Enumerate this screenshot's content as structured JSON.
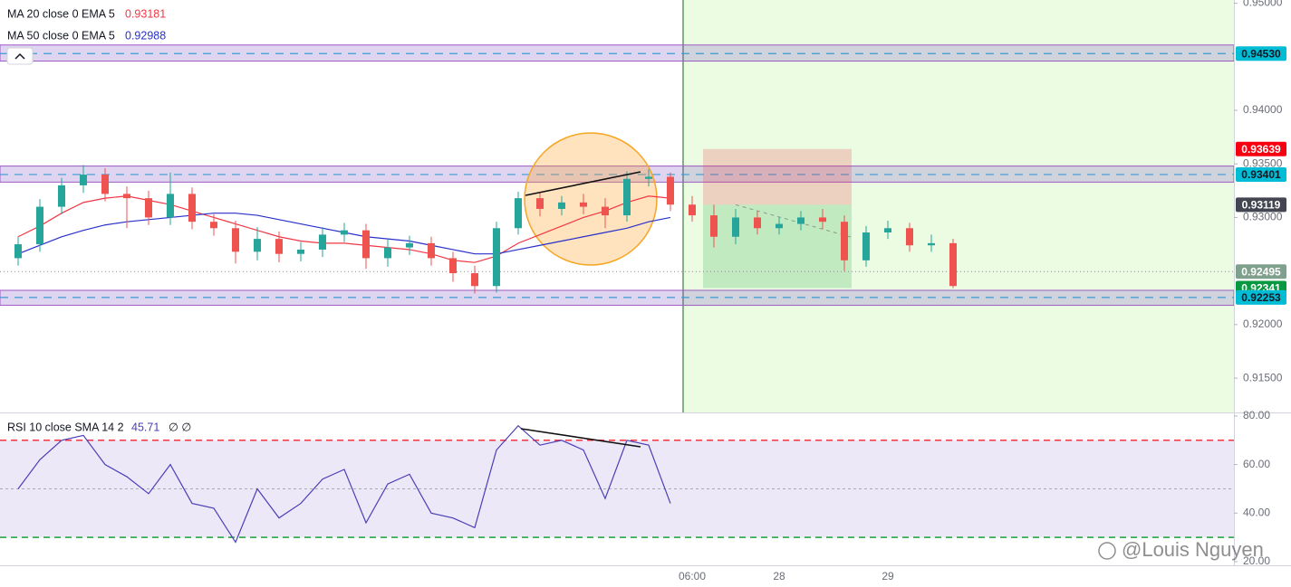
{
  "chart_data": {
    "type": "candlestick",
    "categories": [
      null,
      null,
      null,
      null,
      null,
      null,
      null,
      null,
      null,
      null,
      null,
      null,
      null,
      null,
      null,
      null,
      null,
      null,
      null,
      null,
      null,
      null,
      null,
      null,
      null,
      null,
      null,
      null,
      null,
      null,
      null,
      "06:00",
      null,
      null,
      null,
      "28",
      null,
      null,
      null,
      null,
      "29",
      null,
      null,
      null
    ],
    "open": [
      0.9262,
      0.9275,
      0.931,
      0.933,
      0.934,
      0.9322,
      0.9318,
      0.93,
      0.9322,
      0.9296,
      0.929,
      0.9268,
      0.928,
      0.9266,
      0.927,
      0.9284,
      0.9288,
      0.9262,
      0.9272,
      0.9276,
      0.9262,
      0.9248,
      0.9236,
      0.929,
      0.9318,
      0.9308,
      0.9314,
      0.931,
      0.9302,
      0.9336,
      0.9338,
      0.9312,
      0.9302,
      0.9282,
      0.93,
      0.929,
      0.9294,
      0.93,
      0.9296,
      0.926,
      0.9286,
      0.929,
      0.9274,
      0.9276
    ],
    "high": [
      0.9282,
      0.9317,
      0.9337,
      0.9349,
      0.9346,
      0.9329,
      0.9325,
      0.9342,
      0.9328,
      0.9303,
      0.9297,
      0.9291,
      0.9287,
      0.9277,
      0.9291,
      0.9295,
      0.9294,
      0.928,
      0.9283,
      0.9282,
      0.9268,
      0.9255,
      0.9296,
      0.9324,
      0.9323,
      0.932,
      0.9322,
      0.9318,
      0.9343,
      0.9345,
      0.9342,
      0.932,
      0.9312,
      0.9308,
      0.9306,
      0.93,
      0.9306,
      0.9308,
      0.9302,
      0.9292,
      0.9297,
      0.9295,
      0.9284,
      0.928
    ],
    "low": [
      0.9255,
      0.9268,
      0.9303,
      0.9323,
      0.9315,
      0.929,
      0.9293,
      0.9293,
      0.9289,
      0.9283,
      0.9257,
      0.926,
      0.9258,
      0.9259,
      0.9263,
      0.9277,
      0.9252,
      0.9254,
      0.9265,
      0.9255,
      0.924,
      0.9229,
      0.923,
      0.9284,
      0.9301,
      0.9302,
      0.9303,
      0.929,
      0.9296,
      0.9329,
      0.9306,
      0.9296,
      0.9272,
      0.9275,
      0.9284,
      0.9284,
      0.9288,
      0.9289,
      0.925,
      0.9254,
      0.928,
      0.9268,
      0.9268,
      0.9234
    ],
    "close": [
      0.9275,
      0.931,
      0.933,
      0.934,
      0.9322,
      0.9318,
      0.93,
      0.9322,
      0.9296,
      0.929,
      0.9268,
      0.928,
      0.9266,
      0.927,
      0.9284,
      0.9288,
      0.9262,
      0.9272,
      0.9276,
      0.9262,
      0.9248,
      0.9236,
      0.929,
      0.9318,
      0.9308,
      0.9314,
      0.931,
      0.9302,
      0.9336,
      0.9338,
      0.9312,
      0.9302,
      0.9282,
      0.93,
      0.929,
      0.9294,
      0.93,
      0.9296,
      0.926,
      0.9286,
      0.929,
      0.9274,
      0.9276,
      0.9236
    ],
    "up_color": "#26a69a",
    "down_color": "#ef5350",
    "ylim": [
      0.9118,
      0.9503
    ],
    "yticks": [
      {
        "value": 0.95,
        "label": "0.95000"
      },
      {
        "value": 0.94,
        "label": "0.94000"
      },
      {
        "value": 0.935,
        "label": "0.93500"
      },
      {
        "value": 0.93,
        "label": "0.93000"
      },
      {
        "value": 0.92,
        "label": "0.92000"
      },
      {
        "value": 0.915,
        "label": "0.91500"
      }
    ],
    "series": [
      {
        "name": "MA 20 close 0 EMA 5",
        "last": 0.93181,
        "color": "#f23645",
        "values": [
          0.9282,
          0.9292,
          0.9304,
          0.9314,
          0.9318,
          0.932,
          0.9316,
          0.9312,
          0.9306,
          0.93,
          0.9294,
          0.9288,
          0.9282,
          0.9278,
          0.9276,
          0.9276,
          0.9274,
          0.9272,
          0.927,
          0.9266,
          0.926,
          0.9258,
          0.9264,
          0.9276,
          0.9284,
          0.9292,
          0.93,
          0.9306,
          0.9314,
          0.932,
          0.9318,
          null,
          null,
          null,
          null,
          null,
          null,
          null,
          null,
          null,
          null,
          null,
          null,
          null
        ]
      },
      {
        "name": "MA 50 close 0 EMA 5",
        "last": 0.92988,
        "color": "#2930c9",
        "values": [
          0.9266,
          0.9274,
          0.9282,
          0.9288,
          0.9293,
          0.9296,
          0.9298,
          0.93,
          0.9302,
          0.9304,
          0.9304,
          0.9302,
          0.9298,
          0.9294,
          0.929,
          0.9286,
          0.9282,
          0.928,
          0.9278,
          0.9274,
          0.927,
          0.9266,
          0.9266,
          0.927,
          0.9274,
          0.9278,
          0.9282,
          0.9286,
          0.929,
          0.9296,
          0.93,
          null,
          null,
          null,
          null,
          null,
          null,
          null,
          null,
          null,
          null,
          null,
          null,
          null
        ]
      }
    ],
    "zones": [
      {
        "low": 0.9446,
        "high": 0.9461
      },
      {
        "low": 0.9333,
        "high": 0.9348
      },
      {
        "low": 0.9218,
        "high": 0.9232
      }
    ],
    "price_labels": [
      {
        "value": 0.9453,
        "label": "0.94530",
        "color": "#00bcd4",
        "text_color": "#131722"
      },
      {
        "value": 0.93639,
        "label": "0.93639",
        "color": "#f7000f",
        "text_color": "#ffffff"
      },
      {
        "value": 0.93401,
        "label": "0.93401",
        "color": "#00bcd4",
        "text_color": "#131722"
      },
      {
        "value": 0.93119,
        "label": "0.93119",
        "color": "#434651",
        "text_color": "#ffffff"
      },
      {
        "value": 0.92495,
        "label": "0.92495",
        "color": "#80a08e",
        "text_color": "#ffffff"
      },
      {
        "value": 0.92341,
        "label": "0.92341",
        "color": "#089940",
        "text_color": "#ffffff"
      },
      {
        "value": 0.92253,
        "label": "0.92253",
        "color": "#00bcd4",
        "text_color": "#131722"
      }
    ],
    "rsi": {
      "name": "RSI 10 close SMA 14 2",
      "value": 45.71,
      "flags": "∅ ∅",
      "color": "#4a3fb5",
      "values": [
        50,
        62,
        70,
        72,
        60,
        55,
        48,
        60,
        44,
        42,
        28,
        50,
        38,
        44,
        54,
        58,
        36,
        52,
        56,
        40,
        38,
        34,
        66,
        76,
        68,
        70,
        66,
        46,
        70,
        68,
        44,
        null,
        null,
        null,
        null,
        null,
        null,
        null,
        null,
        null,
        null,
        null,
        null,
        null
      ],
      "ylim": [
        18.5,
        81.1
      ],
      "yticks": [
        {
          "value": 80,
          "label": "80.00"
        },
        {
          "value": 60,
          "label": "60.00"
        },
        {
          "value": 40,
          "label": "40.00"
        },
        {
          "value": 20,
          "label": "20.00"
        }
      ],
      "levels": [
        {
          "value": 70,
          "color": "#f23645"
        },
        {
          "value": 50,
          "color": "#a9abb3"
        },
        {
          "value": 30,
          "color": "#1e9e3a"
        }
      ]
    },
    "watermark": "@Louis Nguyen"
  }
}
